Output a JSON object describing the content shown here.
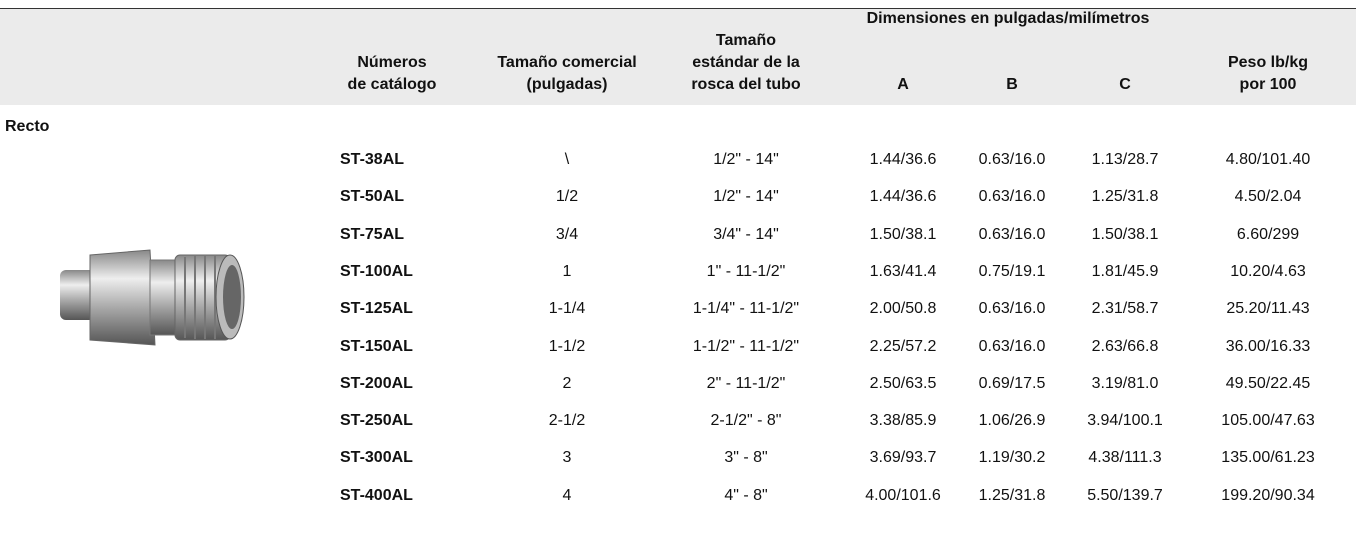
{
  "header": {
    "group": "Dimensiones en pulgadas/milímetros",
    "columns": [
      [
        "Números",
        "de catálogo"
      ],
      [
        "Tamaño comercial",
        "(pulgadas)"
      ],
      [
        "Tamaño",
        "estándar de la",
        "rosca del tubo"
      ],
      [
        "A"
      ],
      [
        "B"
      ],
      [
        "C"
      ],
      [
        "Peso lb/kg",
        "por 100"
      ]
    ]
  },
  "section": "Recto",
  "table": {
    "rows": [
      [
        "ST-38AL",
        "\\",
        "1/2\" - 14\"",
        "1.44/36.6",
        "0.63/16.0",
        "1.13/28.7",
        "4.80/101.40"
      ],
      [
        "ST-50AL",
        "1/2",
        "1/2\" - 14\"",
        "1.44/36.6",
        "0.63/16.0",
        "1.25/31.8",
        "4.50/2.04"
      ],
      [
        "ST-75AL",
        "3/4",
        "3/4\" - 14\"",
        "1.50/38.1",
        "0.63/16.0",
        "1.50/38.1",
        "6.60/299"
      ],
      [
        "ST-100AL",
        "1",
        "1\" - 11-1/2\"",
        "1.63/41.4",
        "0.75/19.1",
        "1.81/45.9",
        "10.20/4.63"
      ],
      [
        "ST-125AL",
        "1-1/4",
        "1-1/4\" - 11-1/2\"",
        "2.00/50.8",
        "0.63/16.0",
        "2.31/58.7",
        "25.20/11.43"
      ],
      [
        "ST-150AL",
        "1-1/2",
        "1-1/2\" - 11-1/2\"",
        "2.25/57.2",
        "0.63/16.0",
        "2.63/66.8",
        "36.00/16.33"
      ],
      [
        "ST-200AL",
        "2",
        "2\" - 11-1/2\"",
        "2.50/63.5",
        "0.69/17.5",
        "3.19/81.0",
        "49.50/22.45"
      ],
      [
        "ST-250AL",
        "2-1/2",
        "2-1/2\" - 8\"",
        "3.38/85.9",
        "1.06/26.9",
        "3.94/100.1",
        "105.00/47.63"
      ],
      [
        "ST-300AL",
        "3",
        "3\" - 8\"",
        "3.69/93.7",
        "1.19/30.2",
        "4.38/111.3",
        "135.00/61.23"
      ],
      [
        "ST-400AL",
        "4",
        "4\" - 8\"",
        "4.00/101.6",
        "1.25/31.8",
        "5.50/139.7",
        "199.20/90.34"
      ]
    ]
  }
}
